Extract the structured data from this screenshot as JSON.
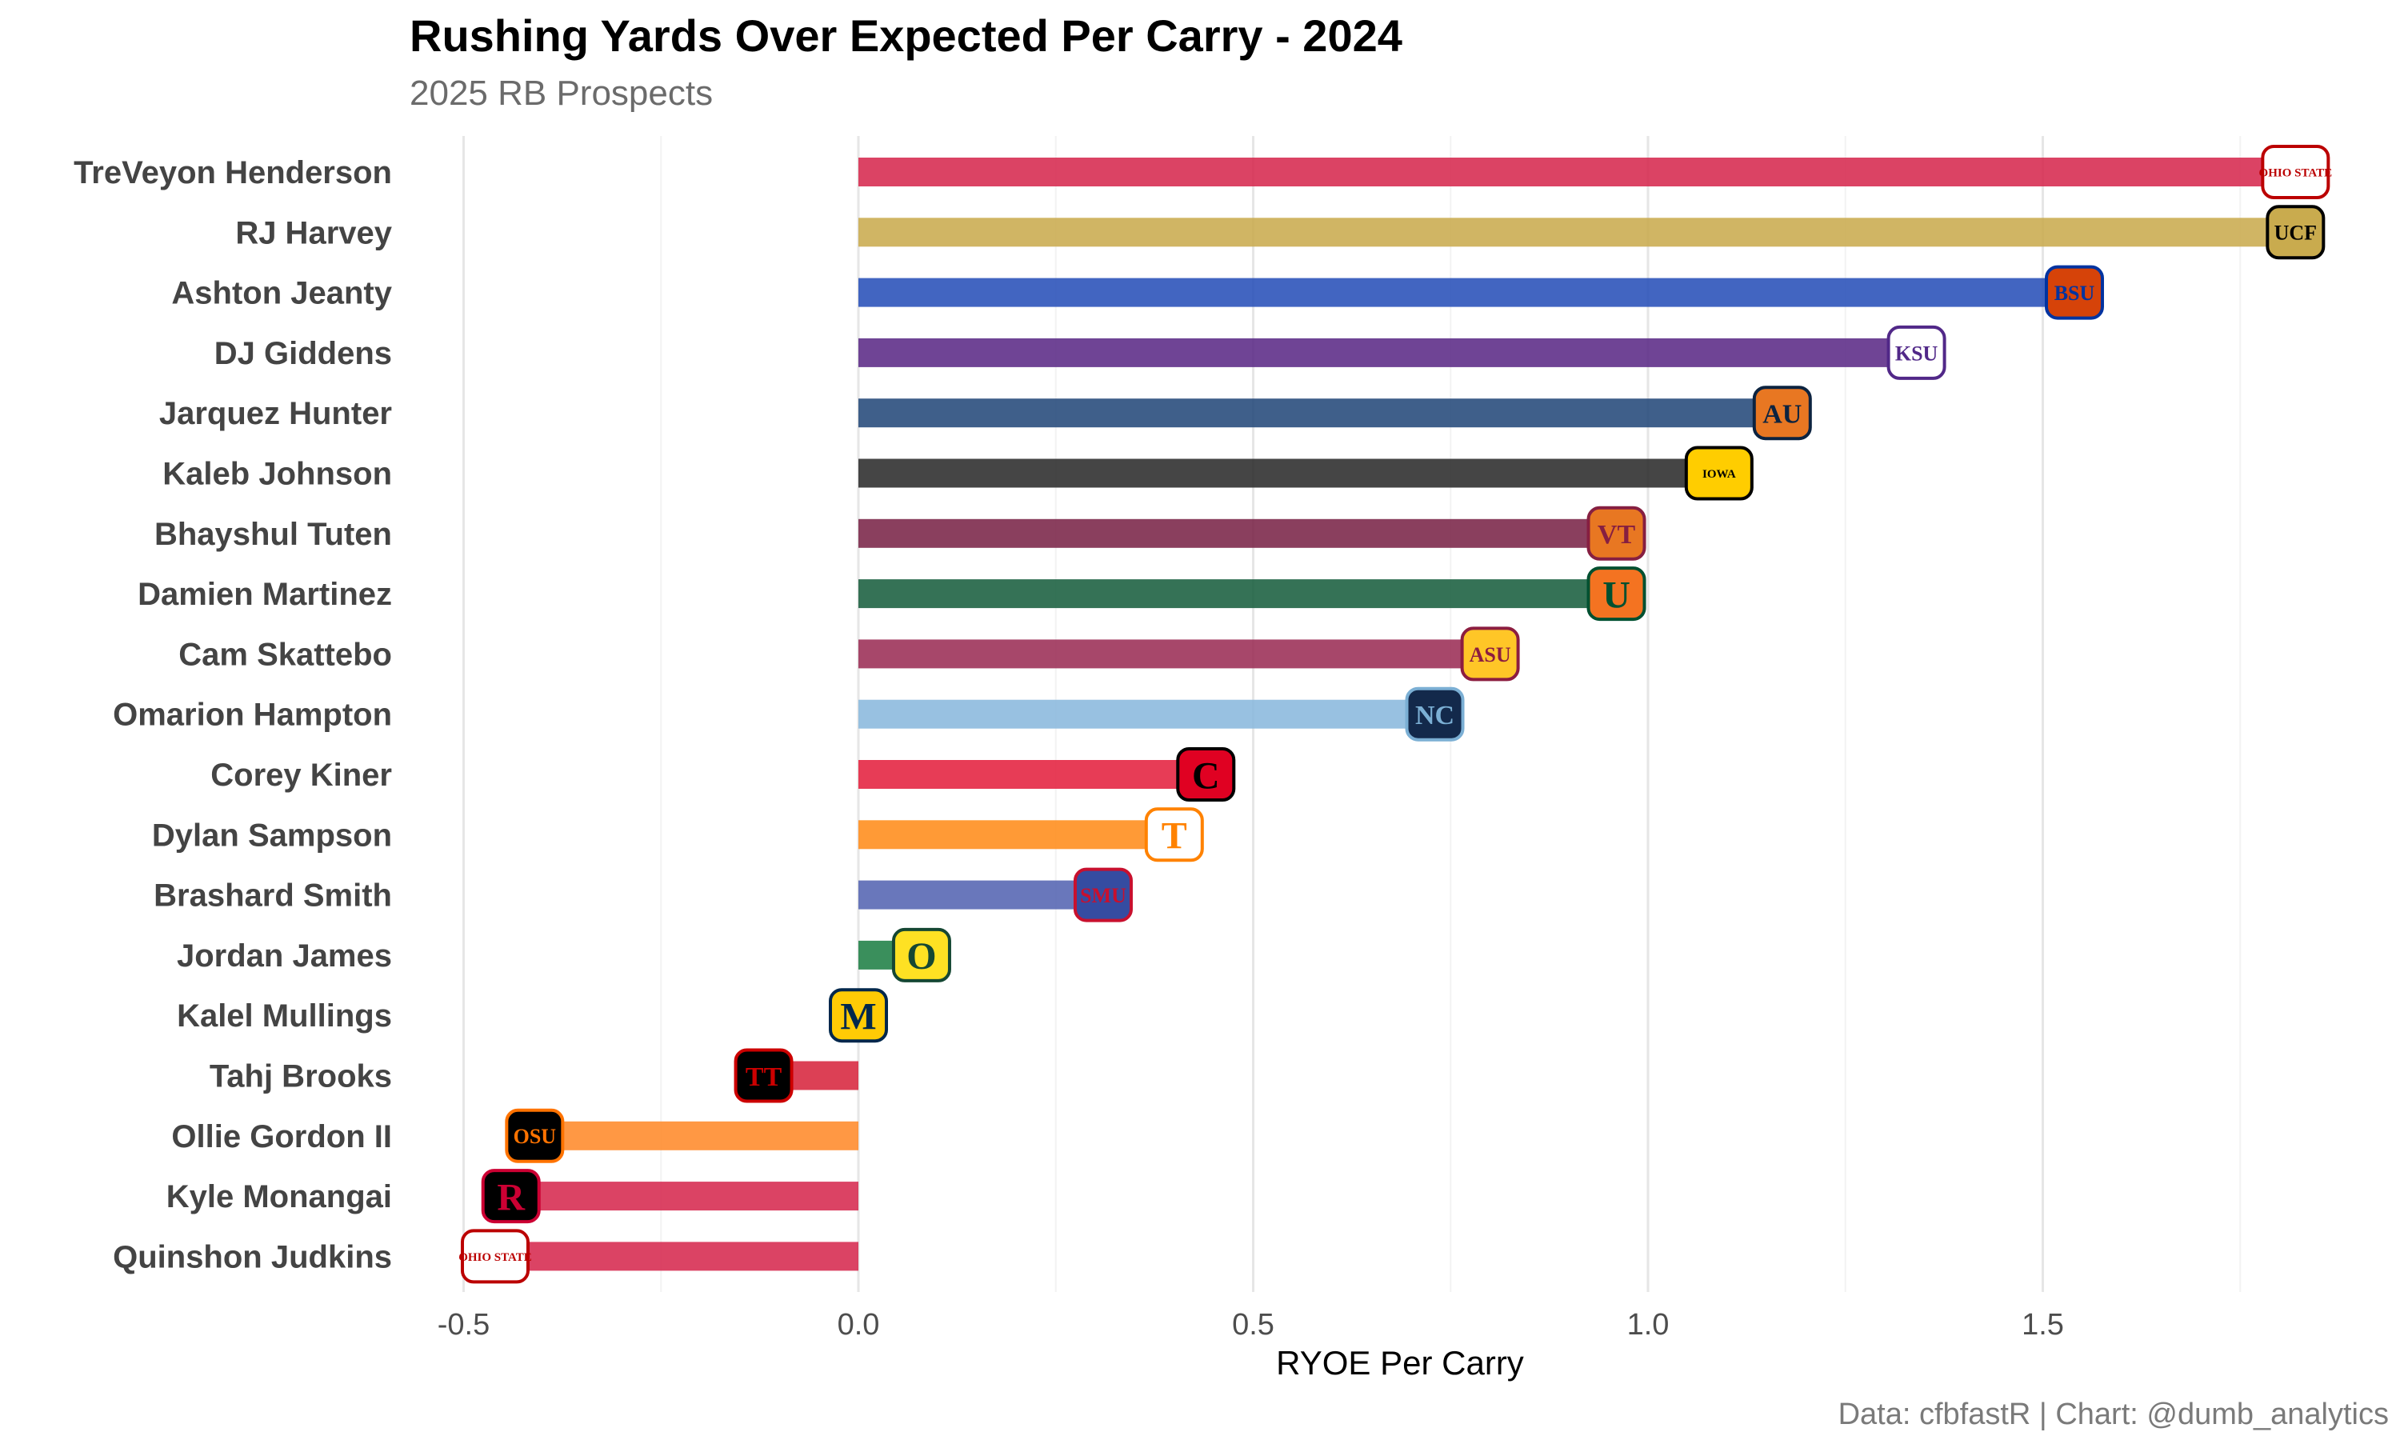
{
  "chart_data": {
    "type": "bar",
    "orientation": "horizontal",
    "title": "Rushing Yards Over Expected Per Carry - 2024",
    "subtitle": "2025 RB Prospects",
    "xlabel": "RYOE Per Carry",
    "ylabel": "",
    "xlim": [
      -0.5,
      1.8
    ],
    "x_ticks": [
      "-0.5",
      "0.0",
      "0.5",
      "1.0",
      "1.5"
    ],
    "grid": "vertical",
    "caption": "Data: cfbfastR | Chart: @dumb_analytics",
    "bars": [
      {
        "player": "TreVeyon Henderson",
        "team": "Ohio State",
        "value": 1.82,
        "color": "#d6294f",
        "logo": "OHIO STATE",
        "logo_fg": "#bb0000",
        "logo_bg": "#ffffff"
      },
      {
        "player": "RJ Harvey",
        "team": "UCF",
        "value": 1.82,
        "color": "#c9ab4e",
        "logo": "UCF",
        "logo_fg": "#000000",
        "logo_bg": "#c9ab4e"
      },
      {
        "player": "Ashton Jeanty",
        "team": "Boise State",
        "value": 1.54,
        "color": "#2850b8",
        "logo": "BSU",
        "logo_fg": "#0033a0",
        "logo_bg": "#d64309"
      },
      {
        "player": "DJ Giddens",
        "team": "Kansas State",
        "value": 1.34,
        "color": "#5b2a86",
        "logo": "KSU",
        "logo_fg": "#512888",
        "logo_bg": "#ffffff"
      },
      {
        "player": "Jarquez Hunter",
        "team": "Auburn",
        "value": 1.17,
        "color": "#24497a",
        "logo": "AU",
        "logo_fg": "#0c2340",
        "logo_bg": "#e87722"
      },
      {
        "player": "Kaleb Johnson",
        "team": "Iowa",
        "value": 1.09,
        "color": "#2b2b2b",
        "logo": "IOWA",
        "logo_fg": "#000000",
        "logo_bg": "#ffcd00"
      },
      {
        "player": "Bhayshul Tuten",
        "team": "Virginia Tech",
        "value": 0.96,
        "color": "#7a2448",
        "logo": "VT",
        "logo_fg": "#861f41",
        "logo_bg": "#e87722"
      },
      {
        "player": "Damien Martinez",
        "team": "Miami",
        "value": 0.96,
        "color": "#195f3f",
        "logo": "U",
        "logo_fg": "#005030",
        "logo_bg": "#f47321"
      },
      {
        "player": "Cam Skattebo",
        "team": "Arizona State",
        "value": 0.8,
        "color": "#9b2d55",
        "logo": "ASU",
        "logo_fg": "#8c1d40",
        "logo_bg": "#ffc627"
      },
      {
        "player": "Omarion Hampton",
        "team": "North Carolina",
        "value": 0.73,
        "color": "#8ab8dd",
        "logo": "NC",
        "logo_fg": "#7bafd4",
        "logo_bg": "#13294b"
      },
      {
        "player": "Corey Kiner",
        "team": "Cincinnati",
        "value": 0.44,
        "color": "#e4213f",
        "logo": "C",
        "logo_fg": "#000000",
        "logo_bg": "#e00122"
      },
      {
        "player": "Dylan Sampson",
        "team": "Tennessee",
        "value": 0.4,
        "color": "#ff8c1a",
        "logo": "T",
        "logo_fg": "#ff8200",
        "logo_bg": "#ffffff"
      },
      {
        "player": "Brashard Smith",
        "team": "SMU",
        "value": 0.31,
        "color": "#5464b2",
        "logo": "SMU",
        "logo_fg": "#c8102e",
        "logo_bg": "#354ca1"
      },
      {
        "player": "Jordan James",
        "team": "Oregon",
        "value": 0.08,
        "color": "#1f7f45",
        "logo": "O",
        "logo_fg": "#154733",
        "logo_bg": "#fee123"
      },
      {
        "player": "Kalel Mullings",
        "team": "Michigan",
        "value": 0.0,
        "color": "#00274c",
        "logo": "M",
        "logo_fg": "#00274c",
        "logo_bg": "#ffcb05"
      },
      {
        "player": "Tahj Brooks",
        "team": "Texas Tech",
        "value": -0.12,
        "color": "#d7263d",
        "logo": "TT",
        "logo_fg": "#cc0000",
        "logo_bg": "#000000"
      },
      {
        "player": "Ollie Gordon II",
        "team": "Oklahoma State",
        "value": -0.41,
        "color": "#ff8a2a",
        "logo": "OSU",
        "logo_fg": "#ff7300",
        "logo_bg": "#000000"
      },
      {
        "player": "Kyle Monangai",
        "team": "Rutgers",
        "value": -0.44,
        "color": "#d6294f",
        "logo": "R",
        "logo_fg": "#cc0033",
        "logo_bg": "#000000"
      },
      {
        "player": "Quinshon Judkins",
        "team": "Ohio State",
        "value": -0.46,
        "color": "#d6294f",
        "logo": "OHIO STATE",
        "logo_fg": "#bb0000",
        "logo_bg": "#ffffff"
      }
    ]
  }
}
